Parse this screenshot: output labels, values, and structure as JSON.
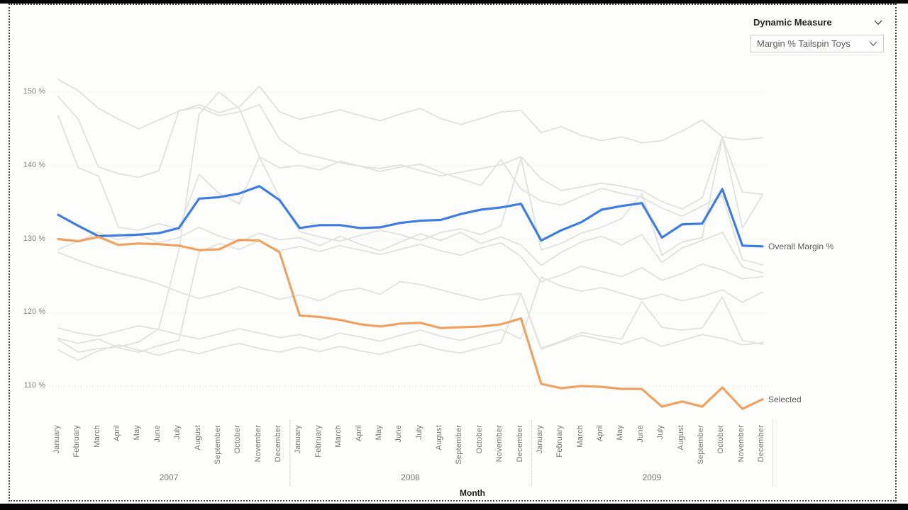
{
  "controls": {
    "dynamic_measure_label": "Dynamic Measure",
    "measure_dropdown_value": "Margin % Tailspin Toys"
  },
  "colors": {
    "overall_line": "#3D7CE0",
    "selected_line": "#F0A15F",
    "context_line": "#E3E3E1",
    "gridline": "#DEDEDC"
  },
  "chart_data": {
    "type": "line",
    "xlabel": "Month",
    "months": [
      "January",
      "February",
      "March",
      "April",
      "May",
      "June",
      "July",
      "August",
      "September",
      "October",
      "November",
      "December"
    ],
    "years": [
      "2007",
      "2008",
      "2009"
    ],
    "y_axis": {
      "ticks": [
        150,
        140,
        130,
        120,
        110
      ],
      "tick_suffix": " %",
      "ylim": [
        104,
        153
      ],
      "grid": "dotted"
    },
    "series": [
      {
        "name": "gray-1",
        "color": "#E3E3E1",
        "width": 2,
        "labeled": false,
        "values": [
          151.7,
          150.2,
          147.8,
          146.3,
          145.0,
          146.2,
          147.4,
          148.3,
          147.2,
          148.0,
          150.8,
          147.3,
          146.3,
          146.9,
          147.6,
          146.8,
          146.1,
          147.0,
          147.8,
          146.4,
          145.6,
          146.4,
          147.3,
          147.5,
          144.5,
          145.3,
          144.1,
          143.4,
          143.9,
          143.1,
          143.4,
          144.7,
          146.2,
          143.9,
          143.5,
          143.8
        ]
      },
      {
        "name": "gray-2",
        "color": "#E3E3E1",
        "width": 2,
        "labeled": false,
        "values": [
          149.4,
          146.3,
          139.8,
          138.9,
          138.4,
          139.3,
          147.5,
          147.9,
          146.8,
          147.3,
          148.3,
          143.6,
          141.7,
          141.1,
          140.4,
          139.9,
          139.6,
          140.1,
          139.3,
          138.6,
          139.1,
          139.6,
          140.1,
          141.2,
          138.2,
          136.6,
          137.1,
          137.6,
          137.2,
          136.6,
          135.1,
          134.1,
          135.6,
          143.9,
          136.4,
          136.1
        ]
      },
      {
        "name": "gray-3",
        "color": "#E3E3E1",
        "width": 2,
        "labeled": false,
        "values": [
          116.3,
          114.6,
          115.1,
          115.3,
          116.0,
          117.8,
          128.5,
          147.0,
          150.0,
          147.8,
          141.2,
          139.7,
          140.0,
          139.4,
          140.6,
          139.9,
          139.2,
          139.8,
          140.2,
          139.1,
          138.2,
          137.3,
          140.8,
          136.8,
          135.2,
          134.6,
          135.8,
          136.9,
          136.2,
          135.7,
          134.2,
          133.1,
          134.5,
          135.9,
          127.2,
          126.5
        ]
      },
      {
        "name": "gray-4",
        "color": "#E3E3E1",
        "width": 2,
        "labeled": false,
        "values": [
          146.8,
          139.7,
          138.6,
          131.6,
          131.2,
          132.1,
          131.4,
          138.8,
          136.2,
          134.8,
          141.2,
          135.6,
          131.0,
          130.3,
          129.7,
          130.5,
          131.2,
          130.6,
          129.8,
          130.9,
          131.4,
          130.6,
          131.8,
          141.0,
          128.5,
          129.4,
          130.8,
          131.6,
          132.8,
          136.2,
          127.8,
          129.6,
          130.2,
          143.8,
          131.5,
          136.0
        ]
      },
      {
        "name": "gray-5",
        "color": "#E3E3E1",
        "width": 2,
        "labeled": false,
        "values": [
          128.6,
          129.7,
          130.9,
          129.9,
          130.6,
          129.5,
          130.2,
          131.6,
          130.4,
          129.6,
          130.8,
          129.9,
          130.2,
          129.1,
          130.4,
          129.3,
          128.4,
          129.6,
          130.7,
          129.8,
          130.9,
          129.4,
          130.3,
          129.2,
          126.4,
          128.2,
          129.6,
          130.4,
          129.2,
          130.6,
          126.8,
          128.8,
          129.8,
          130.9,
          126.2,
          125.4
        ]
      },
      {
        "name": "gray-6",
        "color": "#E3E3E1",
        "width": 2,
        "labeled": false,
        "values": [
          128.2,
          127.1,
          126.2,
          125.4,
          124.7,
          123.9,
          122.8,
          121.9,
          122.6,
          123.5,
          122.7,
          121.8,
          122.4,
          121.6,
          122.9,
          123.3,
          122.5,
          124.2,
          123.8,
          123.1,
          122.4,
          121.7,
          122.3,
          122.6,
          115.2,
          116.1,
          117.3,
          116.8,
          116.4,
          121.5,
          118.0,
          117.6,
          117.9,
          122.1,
          116.2,
          115.7
        ]
      },
      {
        "name": "gray-7",
        "color": "#E3E3E1",
        "width": 2,
        "labeled": false,
        "values": [
          117.9,
          117.2,
          116.8,
          117.5,
          118.2,
          117.7,
          117.0,
          116.4,
          117.1,
          117.8,
          117.2,
          116.6,
          117.0,
          116.3,
          117.2,
          116.7,
          116.1,
          116.9,
          117.6,
          116.8,
          116.2,
          117.0,
          117.7,
          116.4,
          124.8,
          123.6,
          122.9,
          123.4,
          122.6,
          121.8,
          122.5,
          121.6,
          122.2,
          123.1,
          121.4,
          122.8
        ]
      },
      {
        "name": "gray-8",
        "color": "#E3E3E1",
        "width": 2,
        "labeled": false,
        "values": [
          116.5,
          115.8,
          116.4,
          115.2,
          114.6,
          115.5,
          116.2,
          128.2,
          129.4,
          128.6,
          129.8,
          128.4,
          129.0,
          128.3,
          129.1,
          128.5,
          127.9,
          128.6,
          129.3,
          128.4,
          127.8,
          128.8,
          129.5,
          127.6,
          124.2,
          125.1,
          126.3,
          125.6,
          124.9,
          126.1,
          124.4,
          125.3,
          126.6,
          125.8,
          124.6,
          124.9
        ]
      },
      {
        "name": "gray-9",
        "color": "#E3E3E1",
        "width": 2,
        "labeled": false,
        "values": [
          114.9,
          113.5,
          114.8,
          115.6,
          114.9,
          114.2,
          115.0,
          114.4,
          115.2,
          115.8,
          115.1,
          114.6,
          115.3,
          114.7,
          115.4,
          114.8,
          114.3,
          115.1,
          115.7,
          114.9,
          114.5,
          115.2,
          115.9,
          122.6,
          115.0,
          116.0,
          116.9,
          116.3,
          115.7,
          116.6,
          115.4,
          116.2,
          117.0,
          116.5,
          115.6,
          115.9
        ]
      },
      {
        "name": "Overall Margin %",
        "color": "#3D7CE0",
        "width": 3.2,
        "labeled": true,
        "values": [
          133.3,
          131.8,
          130.4,
          130.5,
          130.6,
          130.8,
          131.5,
          135.5,
          135.7,
          136.2,
          137.2,
          135.3,
          131.5,
          131.9,
          131.9,
          131.5,
          131.6,
          132.2,
          132.5,
          132.6,
          133.4,
          134.0,
          134.3,
          134.8,
          129.8,
          131.2,
          132.3,
          134.0,
          134.5,
          134.9,
          130.2,
          132.0,
          132.1,
          136.8,
          129.1,
          129.0
        ]
      },
      {
        "name": "Selected",
        "color": "#F0A15F",
        "width": 3.2,
        "labeled": true,
        "values": [
          130.0,
          129.7,
          130.3,
          129.2,
          129.4,
          129.3,
          129.1,
          128.5,
          128.6,
          129.9,
          129.8,
          128.2,
          119.6,
          119.4,
          119.0,
          118.4,
          118.1,
          118.5,
          118.6,
          117.9,
          118.0,
          118.1,
          118.4,
          119.2,
          110.3,
          109.7,
          110.0,
          109.9,
          109.6,
          109.6,
          107.2,
          107.9,
          107.2,
          109.8,
          106.9,
          108.2
        ]
      }
    ]
  }
}
